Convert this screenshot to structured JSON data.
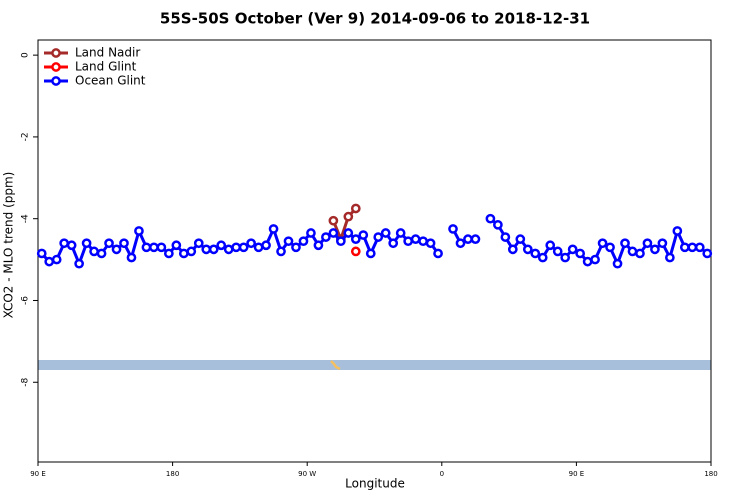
{
  "chart_data": {
    "type": "line",
    "title": "55S-50S October (Ver 9)   2014-09-06 to 2018-12-31",
    "xlabel": "Longitude",
    "ylabel": "XCO2 - MLO trend (ppm)",
    "xlim": [
      90,
      540
    ],
    "xticks": [
      {
        "value": 90,
        "label": "90 E"
      },
      180,
      {
        "value": 270,
        "label": "90 W"
      },
      {
        "value": 360,
        "label": "0"
      },
      {
        "value": 450,
        "label": "90 E"
      },
      {
        "value": 540,
        "label": "180"
      }
    ],
    "ylim": [
      -9.95,
      0.37
    ],
    "yticks": [
      0,
      -2,
      -4,
      -6,
      -8
    ],
    "legend": "upper left",
    "series": [
      {
        "name": "Land Nadir",
        "color": "#a52a2a",
        "x": [
          287.5,
          292.5,
          297.5,
          302.5
        ],
        "values": [
          -4.05,
          -4.5,
          -3.95,
          -3.75
        ]
      },
      {
        "name": "Land Glint",
        "color": "#ff0000",
        "x": [
          302.5
        ],
        "values": [
          -4.8
        ]
      },
      {
        "name": "Ocean Glint",
        "color": "#0000ff",
        "x": [
          92.5,
          97.5,
          102.5,
          107.5,
          112.5,
          117.5,
          122.5,
          127.5,
          132.5,
          137.5,
          142.5,
          147.5,
          152.5,
          157.5,
          162.5,
          167.5,
          172.5,
          177.5,
          182.5,
          187.5,
          192.5,
          197.5,
          202.5,
          207.5,
          212.5,
          217.5,
          222.5,
          227.5,
          232.5,
          237.5,
          242.5,
          247.5,
          252.5,
          257.5,
          262.5,
          267.5,
          272.5,
          277.5,
          282.5,
          287.5,
          292.5,
          297.5,
          302.5,
          307.5,
          312.5,
          317.5,
          322.5,
          327.5,
          332.5,
          337.5,
          342.5,
          347.5,
          352.5,
          357.5,
          362.5,
          367.5,
          372.5,
          377.5,
          382.5,
          387.5,
          392.5,
          397.5,
          402.5,
          407.5,
          412.5,
          417.5,
          422.5,
          427.5,
          432.5,
          437.5,
          442.5,
          447.5,
          452.5,
          457.5,
          462.5,
          467.5,
          472.5,
          477.5,
          482.5,
          487.5,
          492.5,
          497.5,
          502.5,
          507.5,
          512.5,
          517.5,
          522.5,
          527.5,
          532.5,
          537.5
        ],
        "values": [
          -4.85,
          -5.05,
          -5.0,
          -4.6,
          -4.65,
          -5.1,
          -4.6,
          -4.8,
          -4.85,
          -4.6,
          -4.75,
          -4.6,
          -4.95,
          -4.3,
          -4.7,
          -4.7,
          -4.7,
          -4.85,
          -4.65,
          -4.85,
          -4.8,
          -4.6,
          -4.75,
          -4.75,
          -4.65,
          -4.75,
          -4.7,
          -4.7,
          -4.6,
          -4.7,
          -4.65,
          -4.25,
          -4.8,
          -4.55,
          -4.7,
          -4.55,
          -4.35,
          -4.65,
          -4.45,
          -4.35,
          -4.55,
          -4.35,
          -4.5,
          -4.4,
          -4.85,
          -4.45,
          -4.35,
          -4.6,
          -4.35,
          -4.55,
          -4.5,
          -4.55,
          -4.6,
          -4.85,
          null,
          -4.25,
          -4.6,
          -4.5,
          -4.5,
          null,
          -4.0,
          -4.15,
          -4.45,
          -4.75,
          -4.5,
          -4.75,
          -4.85,
          -4.95,
          -4.65,
          -4.8,
          -4.95,
          -4.75,
          -4.85,
          -5.05,
          -5.0,
          -4.6,
          -4.7,
          -5.1,
          -4.6,
          -4.8,
          -4.85,
          -4.6,
          -4.75,
          -4.6,
          -4.95,
          -4.3,
          -4.7,
          -4.7,
          -4.7,
          -4.85
        ]
      }
    ]
  }
}
